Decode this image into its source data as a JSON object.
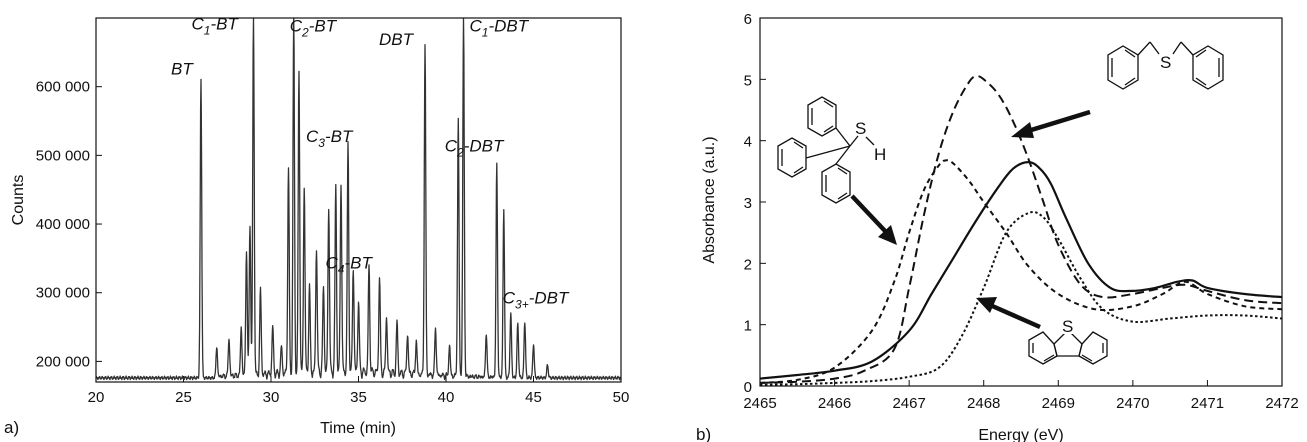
{
  "chart_data": [
    {
      "type": "line",
      "panel_label": "a)",
      "xlabel": "Time (min)",
      "ylabel": "Counts",
      "xlim": [
        20,
        50
      ],
      "ylim": [
        170000,
        700000
      ],
      "xticks": [
        20,
        25,
        30,
        35,
        40,
        45,
        50
      ],
      "yticks": [
        200000,
        300000,
        400000,
        500000,
        600000
      ],
      "ytick_labels": [
        "200 000",
        "300 000",
        "400 000",
        "500 000",
        "600 000"
      ],
      "line_color": "#333333",
      "peaks": [
        {
          "t": 26.0,
          "y": 612000,
          "label": {
            "base": "BT",
            "sub": "",
            "suffix": ""
          }
        },
        {
          "t": 29.0,
          "y": 698000,
          "label": {
            "base": "C",
            "sub": "1",
            "suffix": "-BT"
          }
        },
        {
          "t": 31.3,
          "y": 698000,
          "label": {
            "base": "C",
            "sub": "2",
            "suffix": "-BT"
          }
        },
        {
          "t": 34.4,
          "y": 505000,
          "label": {
            "base": "C",
            "sub": "3",
            "suffix": "-BT"
          }
        },
        {
          "t": 36.2,
          "y": 315000,
          "label": {
            "base": "C",
            "sub": "4",
            "suffix": "-BT"
          }
        },
        {
          "t": 38.8,
          "y": 655000,
          "label": {
            "base": "DBT",
            "sub": "",
            "suffix": ""
          }
        },
        {
          "t": 41.0,
          "y": 698000,
          "label": {
            "base": "C",
            "sub": "1",
            "suffix": "-DBT"
          }
        },
        {
          "t": 42.9,
          "y": 485000,
          "label": {
            "base": "C",
            "sub": "2",
            "suffix": "-DBT"
          }
        },
        {
          "t": 44.5,
          "y": 258000,
          "label": {
            "base": "C",
            "sub": "3+",
            "suffix": "-DBT"
          }
        }
      ],
      "minor_peaks": [
        [
          26.9,
          222000
        ],
        [
          27.6,
          230000
        ],
        [
          28.3,
          245000
        ],
        [
          28.6,
          360000
        ],
        [
          28.8,
          395000
        ],
        [
          29.4,
          300000
        ],
        [
          30.1,
          245000
        ],
        [
          30.6,
          215000
        ],
        [
          31.0,
          475000
        ],
        [
          31.6,
          615000
        ],
        [
          31.9,
          450000
        ],
        [
          32.2,
          300000
        ],
        [
          32.6,
          360000
        ],
        [
          33.0,
          300000
        ],
        [
          33.3,
          420000
        ],
        [
          33.7,
          445000
        ],
        [
          34.0,
          455000
        ],
        [
          34.7,
          330000
        ],
        [
          35.0,
          280000
        ],
        [
          35.6,
          330000
        ],
        [
          36.6,
          260000
        ],
        [
          37.2,
          250000
        ],
        [
          37.8,
          235000
        ],
        [
          38.3,
          225000
        ],
        [
          39.4,
          245000
        ],
        [
          40.2,
          220000
        ],
        [
          40.7,
          548000
        ],
        [
          42.3,
          240000
        ],
        [
          43.3,
          420000
        ],
        [
          43.7,
          270000
        ],
        [
          44.1,
          255000
        ],
        [
          45.0,
          225000
        ],
        [
          45.8,
          195000
        ]
      ]
    },
    {
      "type": "line",
      "panel_label": "b)",
      "xlabel": "Energy (eV)",
      "ylabel": "Absorbance (a.u.)",
      "xlim": [
        2465,
        2472
      ],
      "ylim": [
        0,
        6
      ],
      "xticks": [
        2465,
        2466,
        2467,
        2468,
        2469,
        2470,
        2471,
        2472
      ],
      "yticks": [
        0,
        1,
        2,
        3,
        4,
        5,
        6
      ],
      "series": [
        {
          "style": "long-dash",
          "x": [
            2465.0,
            2465.5,
            2466.0,
            2466.4,
            2466.8,
            2467.0,
            2467.2,
            2467.4,
            2467.6,
            2467.8,
            2467.9,
            2468.0,
            2468.2,
            2468.4,
            2468.6,
            2468.8,
            2469.0,
            2469.3,
            2469.6,
            2470.0,
            2470.4,
            2470.7,
            2471.0,
            2471.5,
            2472.0
          ],
          "y": [
            0.05,
            0.07,
            0.12,
            0.25,
            0.6,
            1.6,
            2.8,
            3.8,
            4.5,
            4.95,
            5.05,
            5.0,
            4.75,
            4.3,
            3.7,
            3.0,
            2.3,
            1.65,
            1.45,
            1.5,
            1.6,
            1.65,
            1.55,
            1.4,
            1.35
          ]
        },
        {
          "style": "short-dash",
          "x": [
            2465.0,
            2465.5,
            2466.0,
            2466.5,
            2466.8,
            2467.0,
            2467.2,
            2467.4,
            2467.5,
            2467.6,
            2467.8,
            2468.0,
            2468.3,
            2468.6,
            2469.0,
            2469.5,
            2470.0,
            2470.4,
            2470.7,
            2471.0,
            2471.5,
            2472.0
          ],
          "y": [
            0.05,
            0.1,
            0.3,
            0.9,
            1.7,
            2.5,
            3.2,
            3.6,
            3.68,
            3.62,
            3.35,
            3.0,
            2.5,
            1.95,
            1.5,
            1.25,
            1.3,
            1.5,
            1.7,
            1.5,
            1.3,
            1.25
          ]
        },
        {
          "style": "solid",
          "x": [
            2465.0,
            2465.5,
            2466.0,
            2466.5,
            2467.0,
            2467.3,
            2467.6,
            2467.9,
            2468.2,
            2468.4,
            2468.6,
            2468.75,
            2468.9,
            2469.1,
            2469.4,
            2469.7,
            2470.0,
            2470.3,
            2470.6,
            2470.8,
            2471.0,
            2471.5,
            2472.0
          ],
          "y": [
            0.12,
            0.18,
            0.25,
            0.4,
            0.9,
            1.5,
            2.1,
            2.7,
            3.25,
            3.55,
            3.65,
            3.55,
            3.3,
            2.75,
            2.0,
            1.6,
            1.55,
            1.6,
            1.7,
            1.72,
            1.6,
            1.5,
            1.45
          ]
        },
        {
          "style": "dotted",
          "x": [
            2465.0,
            2465.5,
            2466.0,
            2466.5,
            2467.0,
            2467.4,
            2467.7,
            2468.0,
            2468.3,
            2468.6,
            2468.8,
            2469.0,
            2469.3,
            2469.6,
            2470.0,
            2470.5,
            2471.0,
            2471.5,
            2472.0
          ],
          "y": [
            0.02,
            0.03,
            0.05,
            0.08,
            0.15,
            0.3,
            0.8,
            1.6,
            2.5,
            2.82,
            2.75,
            2.4,
            1.75,
            1.25,
            1.05,
            1.1,
            1.15,
            1.15,
            1.1
          ]
        }
      ],
      "annotations": {
        "S": "S",
        "H": "H"
      }
    }
  ]
}
